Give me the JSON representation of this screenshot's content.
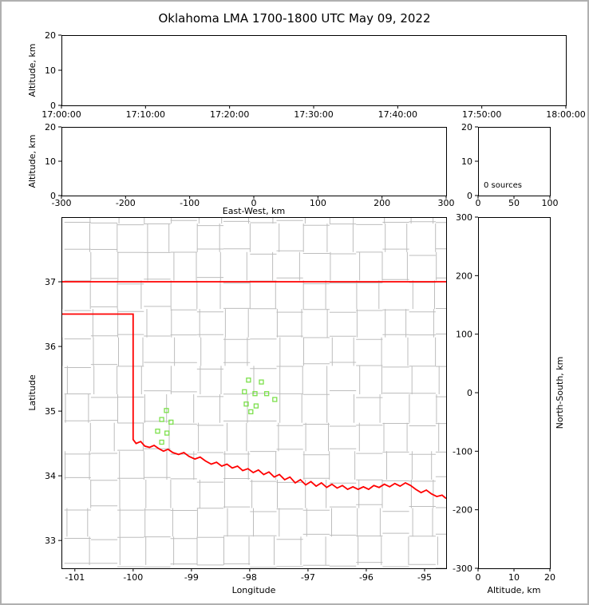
{
  "figure": {
    "title": "Oklahoma LMA 1700-1800 UTC May 09, 2022"
  },
  "colors": {
    "text": "#000000",
    "axis": "#000000",
    "county_lines": "#bdbdbd",
    "state_border": "#ff0000",
    "station_marker": "#7ce04c",
    "background": "#ffffff",
    "figure_border": "#b0b0b0"
  },
  "chart_data": [
    {
      "id": "time_height",
      "name": "time-altitude-panel",
      "type": "scatter",
      "xlabel": "",
      "ylabel": "Altitude, km",
      "xlim": [
        0,
        60
      ],
      "xticks": [
        0,
        10,
        20,
        30,
        40,
        50,
        60
      ],
      "xtick_labels": [
        "17:00:00",
        "17:10:00",
        "17:20:00",
        "17:30:00",
        "17:40:00",
        "17:50:00",
        "18:00:00"
      ],
      "ylim": [
        0,
        20
      ],
      "yticks": [
        0,
        10,
        20
      ],
      "points": []
    },
    {
      "id": "ew_height",
      "name": "eastwest-altitude-panel",
      "type": "scatter",
      "xlabel": "East-West, km",
      "ylabel": "Altitude, km",
      "xlim": [
        -300,
        300
      ],
      "xticks": [
        -300,
        -200,
        -100,
        0,
        100,
        200,
        300
      ],
      "ylim": [
        0,
        20
      ],
      "yticks": [
        0,
        10,
        20
      ],
      "points": []
    },
    {
      "id": "src_height",
      "name": "source-count-panel",
      "type": "scatter",
      "annotation": "0 sources",
      "xlabel": "",
      "ylabel": "",
      "xlim": [
        0,
        100
      ],
      "xticks": [
        0,
        50,
        100
      ],
      "ylim": [
        0,
        20
      ],
      "yticks": [
        0,
        10,
        20
      ],
      "points": []
    },
    {
      "id": "plan_view",
      "name": "plan-view-map-panel",
      "type": "scatter",
      "xlabel": "Longitude",
      "ylabel": "Latitude",
      "xlim": [
        -101.23,
        -94.63
      ],
      "xticks": [
        -101,
        -100,
        -99,
        -98,
        -97,
        -96,
        -95
      ],
      "ylim": [
        32.57,
        38.0
      ],
      "yticks": [
        33,
        34,
        35,
        36,
        37
      ],
      "stations": [
        [
          -98.02,
          35.48
        ],
        [
          -97.8,
          35.45
        ],
        [
          -98.09,
          35.3
        ],
        [
          -97.91,
          35.27
        ],
        [
          -97.71,
          35.27
        ],
        [
          -98.06,
          35.11
        ],
        [
          -97.89,
          35.08
        ],
        [
          -97.57,
          35.18
        ],
        [
          -97.98,
          34.99
        ],
        [
          -99.43,
          35.01
        ],
        [
          -99.51,
          34.87
        ],
        [
          -99.35,
          34.83
        ],
        [
          -99.58,
          34.69
        ],
        [
          -99.42,
          34.66
        ],
        [
          -99.51,
          34.52
        ]
      ],
      "state_border_segments": [
        [
          [
            -101.23,
            37.0
          ],
          [
            -94.63,
            37.0
          ]
        ],
        [
          [
            -101.23,
            36.5
          ],
          [
            -100.0,
            36.5
          ],
          [
            -100.0,
            34.56
          ],
          [
            -99.95,
            34.5
          ],
          [
            -99.87,
            34.53
          ],
          [
            -99.8,
            34.46
          ],
          [
            -99.72,
            34.44
          ],
          [
            -99.64,
            34.47
          ],
          [
            -99.56,
            34.42
          ],
          [
            -99.48,
            34.38
          ],
          [
            -99.4,
            34.41
          ],
          [
            -99.32,
            34.36
          ],
          [
            -99.22,
            34.33
          ],
          [
            -99.13,
            34.36
          ],
          [
            -99.04,
            34.3
          ],
          [
            -98.94,
            34.26
          ],
          [
            -98.85,
            34.29
          ],
          [
            -98.76,
            34.23
          ],
          [
            -98.66,
            34.18
          ],
          [
            -98.57,
            34.21
          ],
          [
            -98.48,
            34.15
          ],
          [
            -98.39,
            34.18
          ],
          [
            -98.3,
            34.12
          ],
          [
            -98.21,
            34.15
          ],
          [
            -98.12,
            34.08
          ],
          [
            -98.03,
            34.11
          ],
          [
            -97.94,
            34.05
          ],
          [
            -97.85,
            34.09
          ],
          [
            -97.76,
            34.02
          ],
          [
            -97.67,
            34.06
          ],
          [
            -97.58,
            33.98
          ],
          [
            -97.49,
            34.02
          ],
          [
            -97.4,
            33.94
          ],
          [
            -97.31,
            33.98
          ],
          [
            -97.22,
            33.89
          ],
          [
            -97.13,
            33.94
          ],
          [
            -97.04,
            33.86
          ],
          [
            -96.95,
            33.91
          ],
          [
            -96.86,
            33.84
          ],
          [
            -96.77,
            33.89
          ],
          [
            -96.68,
            33.82
          ],
          [
            -96.59,
            33.87
          ],
          [
            -96.5,
            33.81
          ],
          [
            -96.41,
            33.85
          ],
          [
            -96.32,
            33.79
          ],
          [
            -96.23,
            33.83
          ],
          [
            -96.14,
            33.79
          ],
          [
            -96.05,
            33.83
          ],
          [
            -95.96,
            33.79
          ],
          [
            -95.87,
            33.85
          ],
          [
            -95.78,
            33.82
          ],
          [
            -95.69,
            33.87
          ],
          [
            -95.6,
            33.83
          ],
          [
            -95.51,
            33.88
          ],
          [
            -95.42,
            33.84
          ],
          [
            -95.33,
            33.89
          ],
          [
            -95.24,
            33.85
          ],
          [
            -95.15,
            33.79
          ],
          [
            -95.06,
            33.74
          ],
          [
            -94.97,
            33.78
          ],
          [
            -94.88,
            33.72
          ],
          [
            -94.79,
            33.68
          ],
          [
            -94.7,
            33.7
          ],
          [
            -94.63,
            33.65
          ]
        ]
      ],
      "county_grid": {
        "lon_start": -101.18,
        "lon_step": 0.455,
        "lat_start": 32.62,
        "lat_step": 0.44,
        "jitter": 0.14
      }
    },
    {
      "id": "ns_height",
      "name": "northsouth-altitude-panel",
      "type": "scatter",
      "xlabel": "Altitude, km",
      "ylabel_right": "North-South, km",
      "xlim": [
        0,
        20
      ],
      "xticks": [
        0,
        10,
        20
      ],
      "ylim": [
        -300,
        300
      ],
      "yticks": [
        -300,
        -200,
        -100,
        0,
        100,
        200,
        300
      ],
      "points": []
    }
  ]
}
